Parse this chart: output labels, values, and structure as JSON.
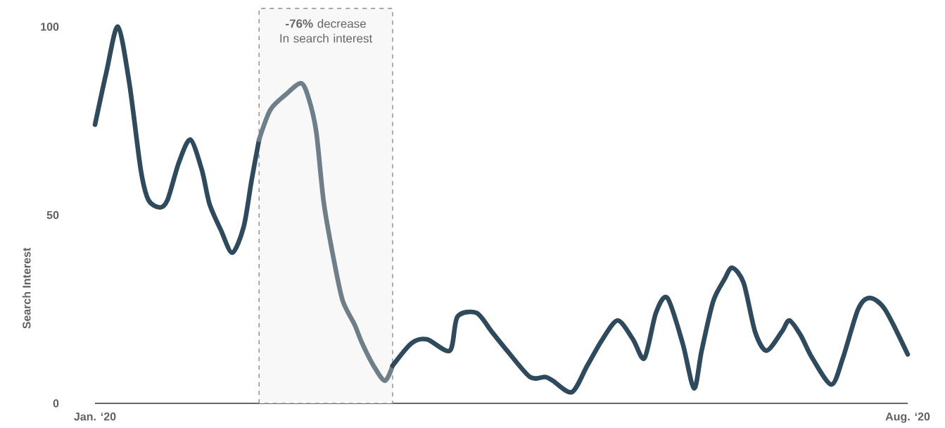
{
  "chart_data": {
    "type": "line",
    "ylabel": "Search Interest",
    "xlim": [
      "2020-01-01",
      "2020-08-01"
    ],
    "xticks": [
      {
        "value": "2020-01-01",
        "label": "Jan. ‘20"
      },
      {
        "value": "2020-08-01",
        "label": "Aug. ‘20"
      }
    ],
    "ylim": [
      0,
      100
    ],
    "yticks": [
      0,
      50,
      100
    ],
    "grid": false,
    "series": [
      {
        "color": "#2e4a5c",
        "x": [
          "2020-01-01",
          "2020-01-04",
          "2020-01-07",
          "2020-01-10",
          "2020-01-13",
          "2020-01-15",
          "2020-01-18",
          "2020-01-20",
          "2020-01-23",
          "2020-01-26",
          "2020-01-29",
          "2020-01-31",
          "2020-02-03",
          "2020-02-06",
          "2020-02-09",
          "2020-02-11",
          "2020-02-13"
        ],
        "values": [
          74,
          88,
          100,
          85,
          62,
          54,
          52,
          54,
          64,
          70,
          62,
          53,
          46,
          40,
          47,
          59,
          70
        ]
      },
      {
        "color": "#6e7f89",
        "x": [
          "2020-02-13",
          "2020-02-16",
          "2020-02-20",
          "2020-02-24",
          "2020-02-26",
          "2020-02-28",
          "2020-03-01",
          "2020-03-04",
          "2020-03-06",
          "2020-03-09",
          "2020-03-11",
          "2020-03-14",
          "2020-03-17",
          "2020-03-19"
        ],
        "values": [
          70,
          78,
          82,
          85,
          81,
          72,
          53,
          36,
          27,
          21,
          16,
          10,
          6,
          10
        ]
      },
      {
        "color": "#2e4a5c",
        "x": [
          "2020-03-19",
          "2020-03-24",
          "2020-03-28",
          "2020-04-03",
          "2020-04-05",
          "2020-04-10",
          "2020-04-14",
          "2020-04-18",
          "2020-04-24",
          "2020-04-28",
          "2020-04-30",
          "2020-05-05",
          "2020-05-09",
          "2020-05-13",
          "2020-05-17",
          "2020-05-21",
          "2020-05-24",
          "2020-05-27",
          "2020-05-30",
          "2020-06-03",
          "2020-06-06",
          "2020-06-08",
          "2020-06-11",
          "2020-06-14",
          "2020-06-16",
          "2020-06-19",
          "2020-06-22",
          "2020-06-25",
          "2020-06-29",
          "2020-07-01",
          "2020-07-04",
          "2020-07-07",
          "2020-07-12",
          "2020-07-15",
          "2020-07-19",
          "2020-07-22",
          "2020-07-26",
          "2020-08-01"
        ],
        "values": [
          10,
          16,
          17,
          14,
          23,
          24,
          19,
          14,
          7,
          7,
          6,
          3,
          10,
          17,
          22,
          17,
          12,
          24,
          28,
          16,
          4,
          14,
          27,
          33,
          36,
          32,
          19,
          14,
          19,
          22,
          18,
          12,
          5,
          12,
          25,
          28,
          25,
          13
        ]
      }
    ],
    "bands": [
      {
        "axis": "x",
        "from": "2020-02-13",
        "to": "2020-03-19",
        "label": "**-76%** decrease In search interest",
        "color": "#f8f8f8"
      }
    ]
  }
}
